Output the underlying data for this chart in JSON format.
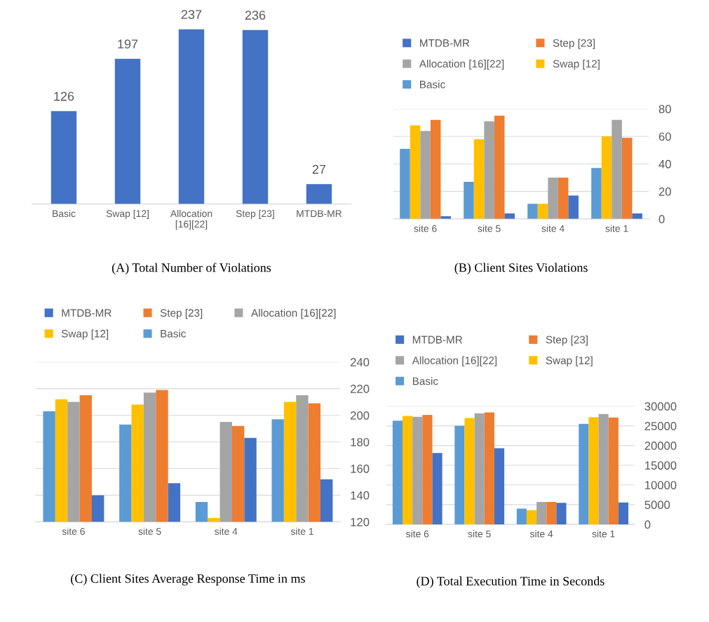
{
  "chart_data": [
    {
      "type": "bar",
      "title": "(A) Total Number of Violations",
      "categories": [
        "Basic",
        "Swap [12]",
        "Allocation\n[16][22]",
        "Step [23]",
        "MTDB-MR"
      ],
      "values": [
        126,
        197,
        237,
        236,
        27
      ],
      "color": "#4472c4",
      "data_labels": true,
      "grid": false,
      "legend": false
    },
    {
      "type": "bar",
      "title": "(B) Client Sites Violations",
      "categories": [
        "site 6",
        "site 5",
        "site 4",
        "site 1"
      ],
      "ylim": [
        0,
        80
      ],
      "yticks": [
        0,
        20,
        40,
        60,
        80
      ],
      "grid": "y",
      "legend": "top",
      "series": [
        {
          "name": "Basic",
          "color": "#5b9bd5",
          "values": [
            51,
            27,
            11,
            37
          ]
        },
        {
          "name": "Swap [12]",
          "color": "#ffc000",
          "values": [
            68,
            58,
            11,
            60
          ]
        },
        {
          "name": "Allocation [16][22]",
          "color": "#a5a5a5",
          "values": [
            64,
            71,
            30,
            72
          ]
        },
        {
          "name": "Step [23]",
          "color": "#ed7d31",
          "values": [
            72,
            75,
            30,
            59
          ]
        },
        {
          "name": "MTDB-MR",
          "color": "#4472c4",
          "values": [
            2,
            4,
            17,
            4
          ]
        }
      ]
    },
    {
      "type": "bar",
      "title": "(C) Client Sites Average Response Time in ms",
      "categories": [
        "site 6",
        "site 5",
        "site 4",
        "site 1"
      ],
      "ylim": [
        120,
        240
      ],
      "yticks": [
        120,
        140,
        160,
        180,
        200,
        220,
        240
      ],
      "grid": "y",
      "legend": "top",
      "series": [
        {
          "name": "Basic",
          "color": "#5b9bd5",
          "values": [
            203,
            193,
            135,
            197
          ]
        },
        {
          "name": "Swap [12]",
          "color": "#ffc000",
          "values": [
            212,
            208,
            123,
            210
          ]
        },
        {
          "name": "Allocation [16][22]",
          "color": "#a5a5a5",
          "values": [
            210,
            217,
            195,
            215
          ]
        },
        {
          "name": "Step [23]",
          "color": "#ed7d31",
          "values": [
            215,
            219,
            192,
            209
          ]
        },
        {
          "name": "MTDB-MR",
          "color": "#4472c4",
          "values": [
            140,
            149,
            183,
            152
          ]
        }
      ]
    },
    {
      "type": "bar",
      "title": "(D) Total Execution Time in Seconds",
      "categories": [
        "site 6",
        "site 5",
        "site 4",
        "site 1"
      ],
      "ylim": [
        0,
        30000
      ],
      "yticks": [
        0,
        5000,
        10000,
        15000,
        20000,
        25000,
        30000
      ],
      "grid": "y",
      "legend": "top",
      "series": [
        {
          "name": "Basic",
          "color": "#5b9bd5",
          "values": [
            26300,
            25000,
            4000,
            25500
          ]
        },
        {
          "name": "Swap [12]",
          "color": "#ffc000",
          "values": [
            27500,
            27000,
            3600,
            27200
          ]
        },
        {
          "name": "Allocation [16][22]",
          "color": "#a5a5a5",
          "values": [
            27300,
            28200,
            5700,
            28000
          ]
        },
        {
          "name": "Step [23]",
          "color": "#ed7d31",
          "values": [
            27800,
            28400,
            5700,
            27100
          ]
        },
        {
          "name": "MTDB-MR",
          "color": "#4472c4",
          "values": [
            18100,
            19300,
            5450,
            5550
          ]
        }
      ]
    }
  ]
}
